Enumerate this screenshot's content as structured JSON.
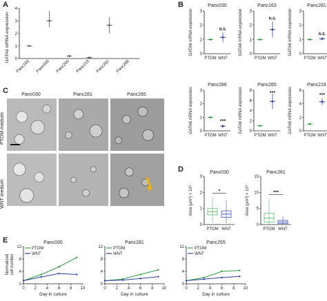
{
  "figure": {
    "panel_letters": [
      "A",
      "B",
      "C",
      "D",
      "E"
    ],
    "colors": {
      "ptom": "#2e9e46",
      "wnt": "#2f3f9e",
      "panel_a": "#555555",
      "d_ptom": "#7cc68a",
      "d_wnt": "#6677c8"
    }
  },
  "panel_a": {
    "ylabel": "GATA6 mRNA expression",
    "yticks": [
      "0",
      "1",
      "2",
      "3",
      "4"
    ],
    "categories": [
      "Panc163",
      "Panc030",
      "Panc265",
      "Panc219",
      "Panc281",
      "Panc286"
    ]
  },
  "panel_b": {
    "ylabel": "GATA6 mRNA expression",
    "xlabels": [
      "PTOM",
      "WNT"
    ],
    "charts": [
      {
        "title": "Panc030",
        "yticks": [
          "0",
          "1",
          "2",
          "3"
        ],
        "sig": "N.S."
      },
      {
        "title": "Panc163",
        "yticks": [
          "0",
          "1",
          "2",
          "3"
        ],
        "sig": "N.S."
      },
      {
        "title": "Panc281",
        "yticks": [
          "0",
          "1",
          "2",
          "3"
        ],
        "sig": "N.S."
      },
      {
        "title": "Panc286",
        "yticks": [
          "0",
          "1",
          "2",
          "3"
        ],
        "sig": "***"
      },
      {
        "title": "Panc265",
        "yticks": [
          "0",
          "2",
          "4",
          "6",
          "8"
        ],
        "sig": "***"
      },
      {
        "title": "Panc219",
        "yticks": [
          "0",
          "2",
          "4",
          "6"
        ],
        "sig": "***"
      }
    ]
  },
  "panel_c": {
    "columns": [
      "Panc030",
      "Panc281",
      "Panc265"
    ],
    "rows": [
      "PTOM medium",
      "WNT medium"
    ]
  },
  "panel_d": {
    "ylabel": "Area (μm²) × 10⁴",
    "xlabels": [
      "PTOM",
      "WNT"
    ],
    "charts": [
      {
        "title": "Panc030",
        "yticks": [
          "0",
          "1",
          "2",
          "3"
        ],
        "sig": "*"
      },
      {
        "title": "Panc281",
        "yticks": [
          "0",
          "5",
          "10",
          "15"
        ],
        "sig": "***"
      }
    ]
  },
  "panel_e": {
    "ylabel": [
      "Normalized",
      "cell number"
    ],
    "xlabel": "Day in culture",
    "xticks": [
      "0",
      "2",
      "4",
      "6",
      "8",
      "10"
    ],
    "legend": [
      "PTOM",
      "WNT"
    ],
    "charts": [
      {
        "title": "Panc030",
        "yticks": [
          "0",
          "4",
          "8",
          "12"
        ]
      },
      {
        "title": "Panc281",
        "yticks": [
          "0",
          "4",
          "8",
          "12"
        ]
      },
      {
        "title": "Panc265",
        "yticks": [
          "0",
          "4",
          "8",
          "12"
        ]
      }
    ]
  },
  "chart_data": [
    {
      "type": "scatter",
      "panel": "A",
      "ylabel": "GATA6 mRNA expression",
      "ylim": [
        0,
        4
      ],
      "categories": [
        "Panc163",
        "Panc030",
        "Panc265",
        "Panc219",
        "Panc281",
        "Panc286"
      ],
      "values": [
        1.0,
        3.0,
        0.2,
        0.08,
        2.65,
        0.0
      ],
      "err_low": [
        1.0,
        2.5,
        0.1,
        0.06,
        2.0,
        0.0
      ],
      "err_high": [
        1.0,
        3.8,
        0.3,
        0.1,
        3.3,
        0.0
      ]
    },
    {
      "type": "scatter",
      "panel": "B",
      "title": "Panc030",
      "categories": [
        "PTOM",
        "WNT"
      ],
      "ylim": [
        0,
        3
      ],
      "series": [
        {
          "name": "PTOM",
          "values": [
            1.0
          ],
          "err": [
            0.0
          ]
        },
        {
          "name": "WNT",
          "values": [
            1.15
          ],
          "err": [
            0.35
          ]
        }
      ]
    },
    {
      "type": "scatter",
      "panel": "B",
      "title": "Panc163",
      "categories": [
        "PTOM",
        "WNT"
      ],
      "ylim": [
        0,
        3
      ],
      "series": [
        {
          "name": "PTOM",
          "values": [
            1.0
          ],
          "err": [
            0.0
          ]
        },
        {
          "name": "WNT",
          "values": [
            1.7
          ],
          "err": [
            0.55
          ]
        }
      ]
    },
    {
      "type": "scatter",
      "panel": "B",
      "title": "Panc281",
      "categories": [
        "PTOM",
        "WNT"
      ],
      "ylim": [
        0,
        3
      ],
      "series": [
        {
          "name": "PTOM",
          "values": [
            1.0
          ],
          "err": [
            0.0
          ]
        },
        {
          "name": "WNT",
          "values": [
            1.05
          ],
          "err": [
            0.1
          ]
        }
      ]
    },
    {
      "type": "scatter",
      "panel": "B",
      "title": "Panc286",
      "categories": [
        "PTOM",
        "WNT"
      ],
      "ylim": [
        0,
        3
      ],
      "series": [
        {
          "name": "PTOM",
          "values": [
            1.0
          ],
          "err": [
            0.0
          ]
        },
        {
          "name": "WNT",
          "values": [
            0.35
          ],
          "err": [
            0.12
          ]
        }
      ]
    },
    {
      "type": "scatter",
      "panel": "B",
      "title": "Panc265",
      "categories": [
        "PTOM",
        "WNT"
      ],
      "ylim": [
        0,
        8
      ],
      "series": [
        {
          "name": "PTOM",
          "values": [
            1.0
          ],
          "err": [
            0.0
          ]
        },
        {
          "name": "WNT",
          "values": [
            5.8
          ],
          "err": [
            1.5
          ]
        }
      ]
    },
    {
      "type": "scatter",
      "panel": "B",
      "title": "Panc219",
      "categories": [
        "PTOM",
        "WNT"
      ],
      "ylim": [
        0,
        6
      ],
      "series": [
        {
          "name": "PTOM",
          "values": [
            1.0
          ],
          "err": [
            0.0
          ]
        },
        {
          "name": "WNT",
          "values": [
            4.3
          ],
          "err": [
            0.5
          ]
        }
      ]
    },
    {
      "type": "box",
      "panel": "D",
      "title": "Panc030",
      "categories": [
        "PTOM",
        "WNT"
      ],
      "ylim": [
        0,
        3
      ],
      "series": [
        {
          "name": "PTOM",
          "q1": 0.6,
          "median": 0.8,
          "q3": 1.0,
          "min": 0.1,
          "max": 1.7
        },
        {
          "name": "WNT",
          "q1": 0.45,
          "median": 0.65,
          "q3": 0.85,
          "min": 0.1,
          "max": 1.5
        }
      ]
    },
    {
      "type": "box",
      "panel": "D",
      "title": "Panc281",
      "categories": [
        "PTOM",
        "WNT"
      ],
      "ylim": [
        0,
        15
      ],
      "series": [
        {
          "name": "PTOM",
          "q1": 0.8,
          "median": 2.0,
          "q3": 3.5,
          "min": 0.1,
          "max": 8.0
        },
        {
          "name": "WNT",
          "q1": 0.3,
          "median": 0.8,
          "q3": 1.3,
          "min": 0.1,
          "max": 2.5
        }
      ]
    },
    {
      "type": "line",
      "panel": "E",
      "title": "Panc030",
      "xlabel": "Day in culture",
      "xlim": [
        0,
        10
      ],
      "ylim": [
        0,
        12
      ],
      "x": [
        0,
        3,
        6,
        9
      ],
      "series": [
        {
          "name": "PTOM",
          "values": [
            1,
            3,
            5.5,
            8.5
          ]
        },
        {
          "name": "WNT",
          "values": [
            1,
            2.2,
            3.3,
            3.0
          ]
        }
      ]
    },
    {
      "type": "line",
      "panel": "E",
      "title": "Panc281",
      "xlabel": "Day in culture",
      "xlim": [
        0,
        10
      ],
      "ylim": [
        0,
        12
      ],
      "x": [
        0,
        3,
        6,
        9
      ],
      "series": [
        {
          "name": "PTOM",
          "values": [
            1,
            1.5,
            3.0,
            4.5
          ]
        },
        {
          "name": "WNT",
          "values": [
            1,
            1.2,
            1.7,
            2.3
          ]
        }
      ]
    },
    {
      "type": "line",
      "panel": "E",
      "title": "Panc265",
      "xlabel": "Day in culture",
      "xlim": [
        0,
        10
      ],
      "ylim": [
        0,
        12
      ],
      "x": [
        0,
        3,
        6,
        9
      ],
      "series": [
        {
          "name": "PTOM",
          "values": [
            1,
            2.0,
            4.0,
            4.3
          ]
        },
        {
          "name": "WNT",
          "values": [
            1,
            1.5,
            2.0,
            2.4
          ]
        }
      ]
    }
  ]
}
